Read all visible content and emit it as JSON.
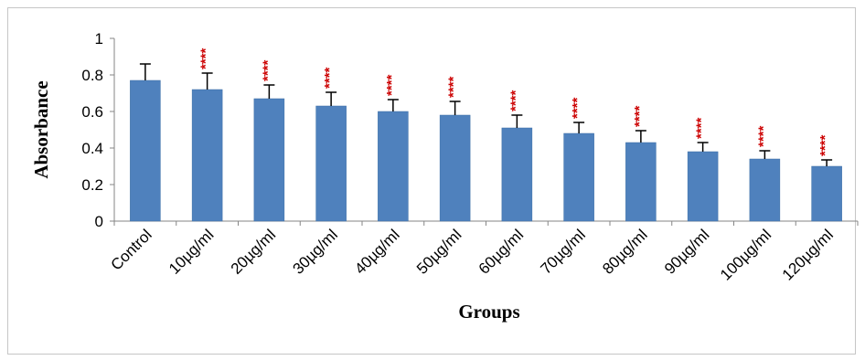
{
  "chart_data": {
    "type": "bar",
    "title": "",
    "xlabel": "Groups",
    "ylabel": "Absorbance",
    "ylim": [
      0,
      1
    ],
    "yticks": [
      "0",
      "0.2",
      "0.4",
      "0.6",
      "0.8",
      "1"
    ],
    "grid": false,
    "legend": "none",
    "categories": [
      "Control",
      "10µg/ml",
      "20µg/ml",
      "30µg/ml",
      "40µg/ml",
      "50µg/ml",
      "60µg/ml",
      "70µg/ml",
      "80µg/ml",
      "90µg/ml",
      "100µg/ml",
      "120µg/ml"
    ],
    "series": [
      {
        "values": [
          0.77,
          0.72,
          0.67,
          0.63,
          0.6,
          0.58,
          0.51,
          0.48,
          0.43,
          0.38,
          0.34,
          0.3
        ],
        "errors": [
          0.09,
          0.09,
          0.075,
          0.075,
          0.065,
          0.075,
          0.07,
          0.06,
          0.065,
          0.05,
          0.045,
          0.035
        ]
      }
    ],
    "annotations": [
      "",
      "****",
      "****",
      "****",
      "****",
      "****",
      "****",
      "****",
      "****",
      "****",
      "****",
      "****"
    ],
    "colors": {
      "bar": "#4f81bd",
      "bar_edge": "#3a6ea5",
      "error": "#000000",
      "annotation": "#cc0000",
      "frame": "#c6c6c6",
      "axis": "#868686"
    }
  }
}
